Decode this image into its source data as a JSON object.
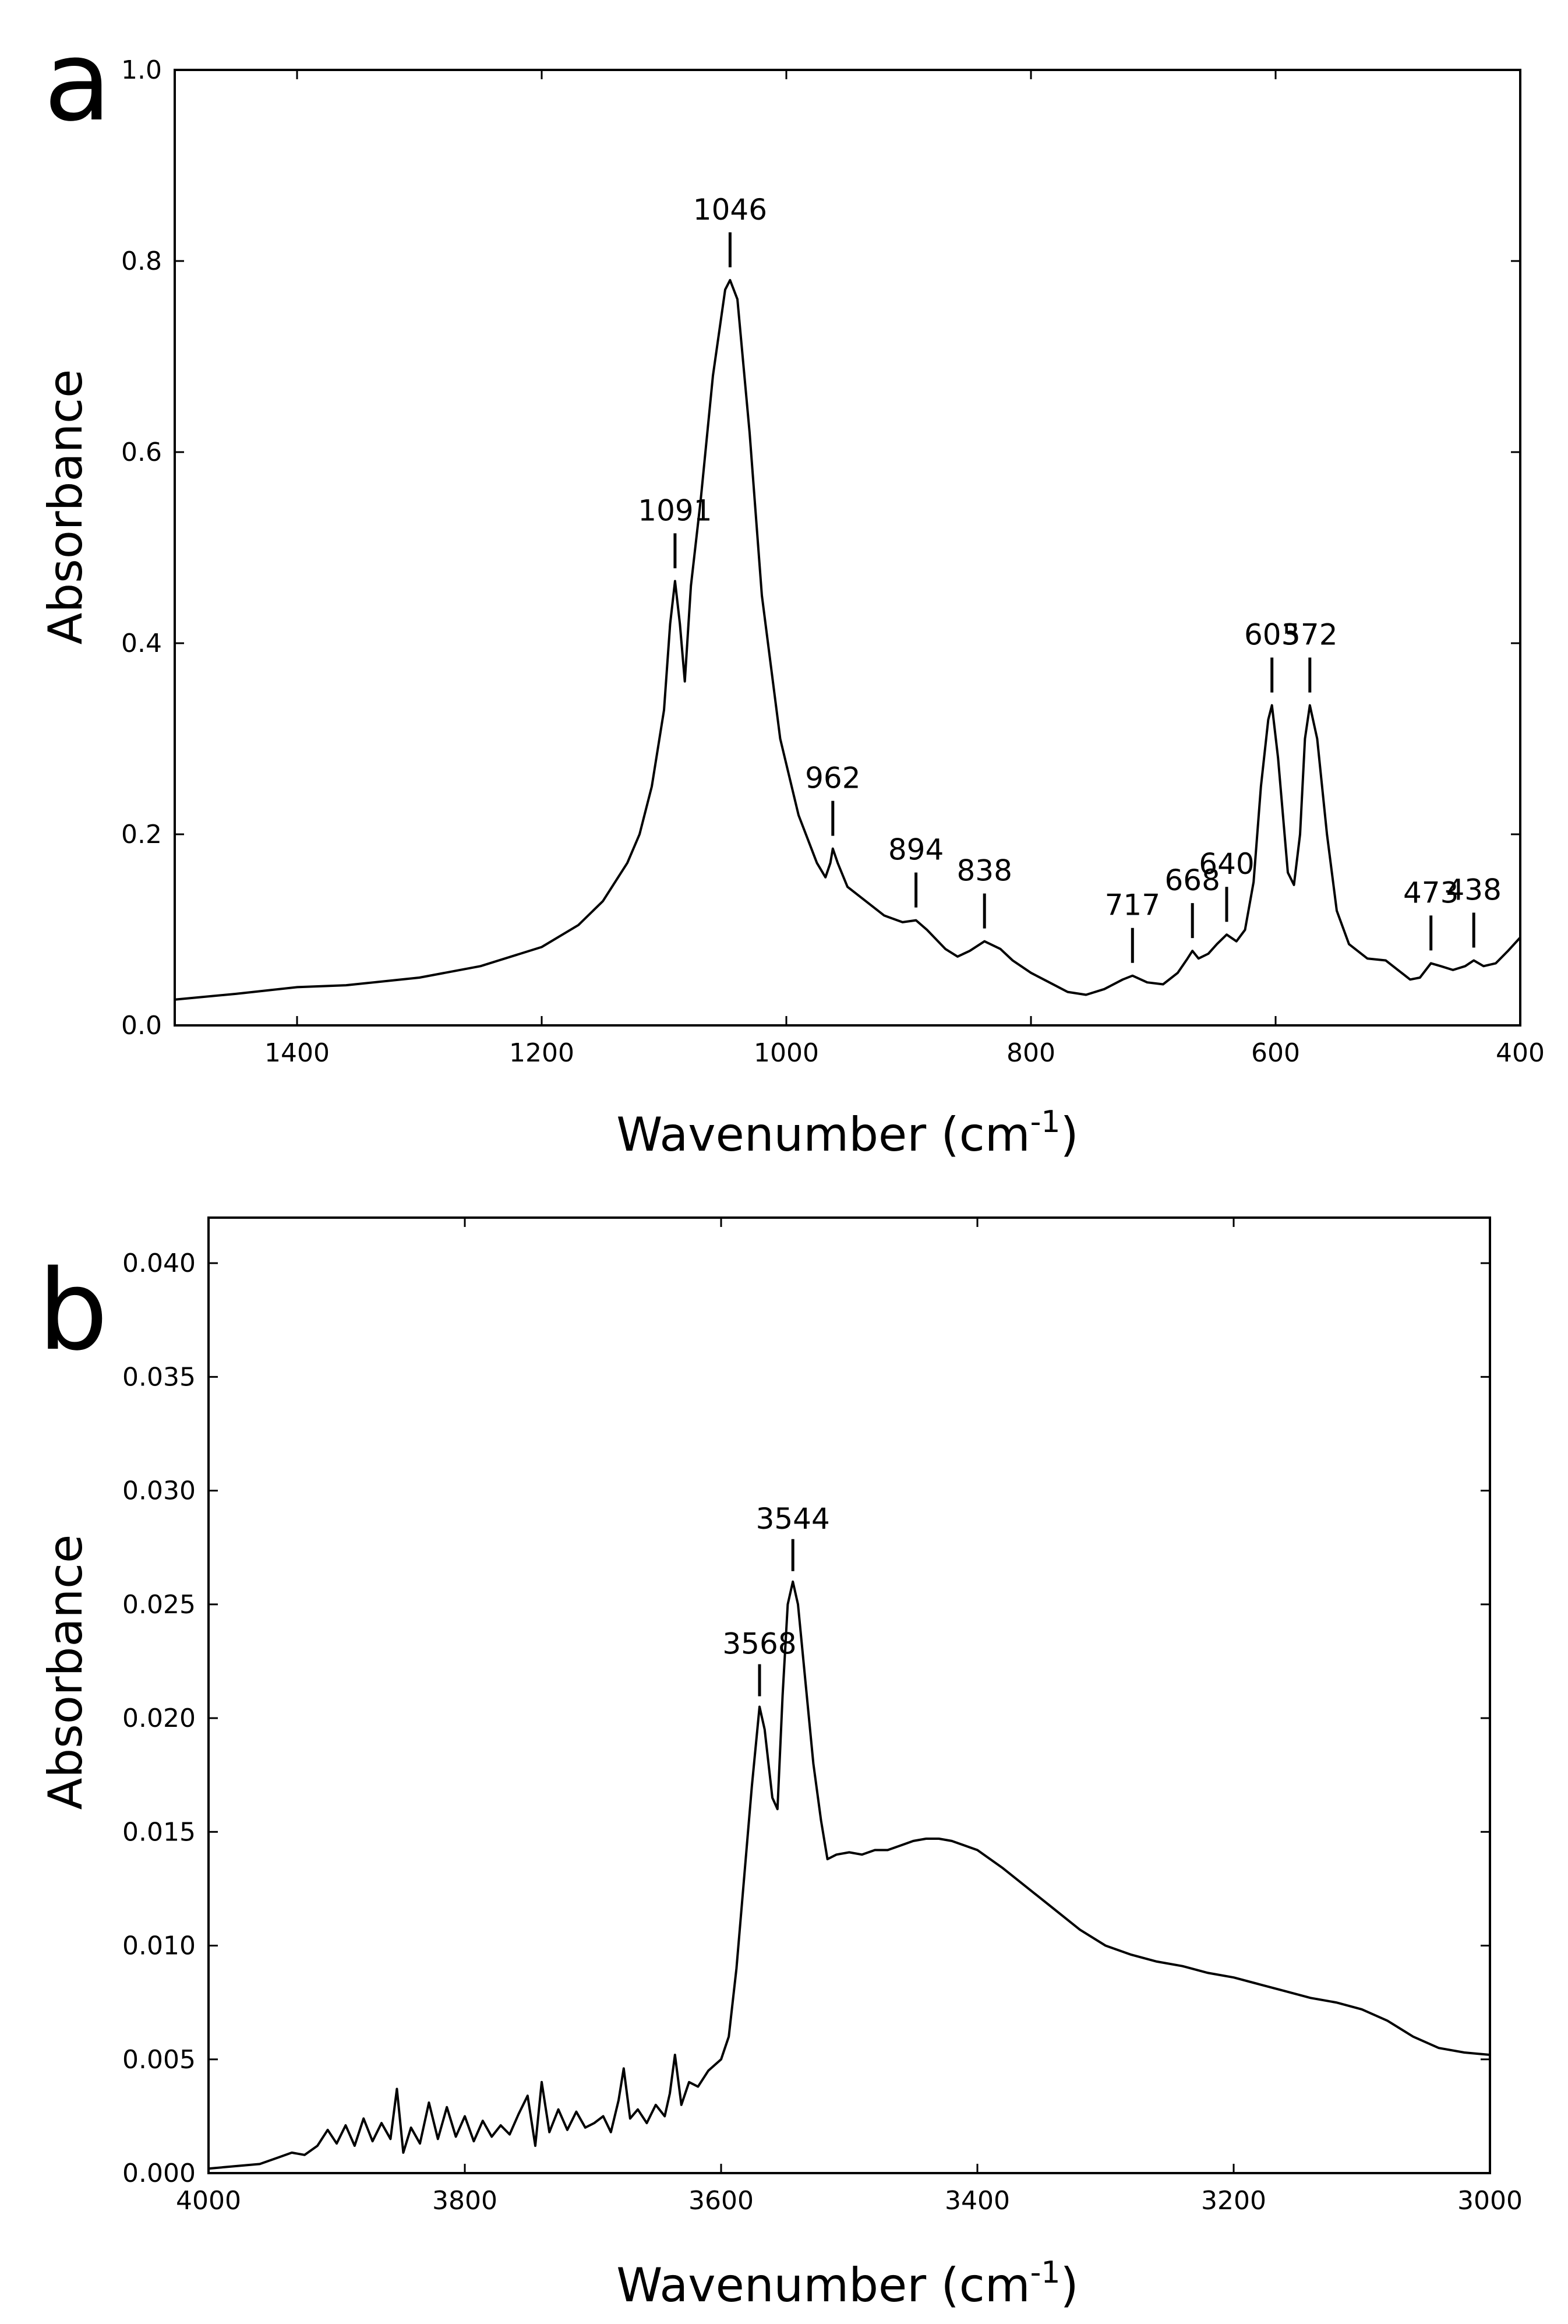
{
  "chart_data": [
    {
      "panel": "a",
      "type": "line",
      "xlabel": "Wavenumber (cm",
      "xlabel_sup": "-1",
      "xlabel_close": ")",
      "ylabel": "Absorbance",
      "xlim": [
        1500,
        400
      ],
      "ylim": [
        0.0,
        1.0
      ],
      "xticks": [
        1400,
        1200,
        1000,
        800,
        600,
        400
      ],
      "yticks": [
        {
          "v": 0.0,
          "label": "0.0"
        },
        {
          "v": 0.2,
          "label": "0.2"
        },
        {
          "v": 0.4,
          "label": "0.4"
        },
        {
          "v": 0.6,
          "label": "0.6"
        },
        {
          "v": 0.8,
          "label": "0.8"
        },
        {
          "v": 1.0,
          "label": "1.0"
        }
      ],
      "series": [
        {
          "name": "spectrum",
          "points": [
            [
              1500,
              0.027
            ],
            [
              1450,
              0.033
            ],
            [
              1400,
              0.04
            ],
            [
              1380,
              0.041
            ],
            [
              1360,
              0.042
            ],
            [
              1300,
              0.05
            ],
            [
              1250,
              0.062
            ],
            [
              1200,
              0.082
            ],
            [
              1170,
              0.105
            ],
            [
              1150,
              0.13
            ],
            [
              1130,
              0.17
            ],
            [
              1120,
              0.2
            ],
            [
              1110,
              0.25
            ],
            [
              1100,
              0.33
            ],
            [
              1095,
              0.42
            ],
            [
              1091,
              0.465
            ],
            [
              1087,
              0.42
            ],
            [
              1083,
              0.36
            ],
            [
              1078,
              0.46
            ],
            [
              1070,
              0.55
            ],
            [
              1060,
              0.68
            ],
            [
              1050,
              0.77
            ],
            [
              1046,
              0.78
            ],
            [
              1040,
              0.76
            ],
            [
              1030,
              0.62
            ],
            [
              1020,
              0.45
            ],
            [
              1005,
              0.3
            ],
            [
              990,
              0.22
            ],
            [
              975,
              0.17
            ],
            [
              968,
              0.155
            ],
            [
              964,
              0.17
            ],
            [
              962,
              0.185
            ],
            [
              958,
              0.17
            ],
            [
              950,
              0.145
            ],
            [
              935,
              0.13
            ],
            [
              920,
              0.115
            ],
            [
              905,
              0.108
            ],
            [
              894,
              0.11
            ],
            [
              885,
              0.1
            ],
            [
              870,
              0.08
            ],
            [
              860,
              0.072
            ],
            [
              850,
              0.078
            ],
            [
              838,
              0.088
            ],
            [
              825,
              0.08
            ],
            [
              815,
              0.068
            ],
            [
              800,
              0.055
            ],
            [
              785,
              0.045
            ],
            [
              770,
              0.035
            ],
            [
              755,
              0.032
            ],
            [
              740,
              0.038
            ],
            [
              725,
              0.048
            ],
            [
              717,
              0.052
            ],
            [
              705,
              0.045
            ],
            [
              692,
              0.043
            ],
            [
              680,
              0.055
            ],
            [
              672,
              0.07
            ],
            [
              668,
              0.078
            ],
            [
              663,
              0.07
            ],
            [
              655,
              0.075
            ],
            [
              648,
              0.085
            ],
            [
              640,
              0.095
            ],
            [
              632,
              0.088
            ],
            [
              625,
              0.1
            ],
            [
              618,
              0.15
            ],
            [
              612,
              0.25
            ],
            [
              606,
              0.32
            ],
            [
              603,
              0.335
            ],
            [
              598,
              0.28
            ],
            [
              590,
              0.16
            ],
            [
              585,
              0.147
            ],
            [
              580,
              0.2
            ],
            [
              576,
              0.3
            ],
            [
              572,
              0.335
            ],
            [
              566,
              0.3
            ],
            [
              558,
              0.2
            ],
            [
              550,
              0.12
            ],
            [
              540,
              0.085
            ],
            [
              525,
              0.07
            ],
            [
              510,
              0.068
            ],
            [
              500,
              0.058
            ],
            [
              490,
              0.048
            ],
            [
              482,
              0.05
            ],
            [
              473,
              0.065
            ],
            [
              465,
              0.062
            ],
            [
              455,
              0.058
            ],
            [
              445,
              0.062
            ],
            [
              438,
              0.068
            ],
            [
              430,
              0.062
            ],
            [
              420,
              0.065
            ],
            [
              410,
              0.078
            ],
            [
              400,
              0.092
            ]
          ]
        }
      ],
      "annotations": [
        {
          "label": "1091",
          "x": 1091,
          "y": 0.465
        },
        {
          "label": "1046",
          "x": 1046,
          "y": 0.78
        },
        {
          "label": "962",
          "x": 962,
          "y": 0.185
        },
        {
          "label": "894",
          "x": 894,
          "y": 0.11
        },
        {
          "label": "838",
          "x": 838,
          "y": 0.088
        },
        {
          "label": "717",
          "x": 717,
          "y": 0.052
        },
        {
          "label": "668",
          "x": 668,
          "y": 0.078
        },
        {
          "label": "640",
          "x": 640,
          "y": 0.095
        },
        {
          "label": "603",
          "x": 603,
          "y": 0.335
        },
        {
          "label": "572",
          "x": 572,
          "y": 0.335
        },
        {
          "label": "473",
          "x": 473,
          "y": 0.065
        },
        {
          "label": "438",
          "x": 438,
          "y": 0.068
        }
      ]
    },
    {
      "panel": "b",
      "type": "line",
      "xlabel": "Wavenumber (cm",
      "xlabel_sup": "-1",
      "xlabel_close": ")",
      "ylabel": "Absorbance",
      "xlim": [
        4000,
        3000
      ],
      "ylim": [
        0.0,
        0.042
      ],
      "xticks": [
        4000,
        3800,
        3600,
        3400,
        3200,
        3000
      ],
      "yticks": [
        {
          "v": 0.0,
          "label": "0.000"
        },
        {
          "v": 0.005,
          "label": "0.005"
        },
        {
          "v": 0.01,
          "label": "0.010"
        },
        {
          "v": 0.015,
          "label": "0.015"
        },
        {
          "v": 0.02,
          "label": "0.020"
        },
        {
          "v": 0.025,
          "label": "0.025"
        },
        {
          "v": 0.03,
          "label": "0.030"
        },
        {
          "v": 0.035,
          "label": "0.035"
        },
        {
          "v": 0.04,
          "label": "0.040"
        }
      ],
      "series": [
        {
          "name": "spectrum",
          "points": [
            [
              4000,
              0.0002
            ],
            [
              3980,
              0.0003
            ],
            [
              3960,
              0.0004
            ],
            [
              3945,
              0.0007
            ],
            [
              3935,
              0.0009
            ],
            [
              3925,
              0.0008
            ],
            [
              3915,
              0.0012
            ],
            [
              3907,
              0.0019
            ],
            [
              3900,
              0.0013
            ],
            [
              3893,
              0.0021
            ],
            [
              3886,
              0.0012
            ],
            [
              3879,
              0.0024
            ],
            [
              3872,
              0.0014
            ],
            [
              3865,
              0.0022
            ],
            [
              3858,
              0.0015
            ],
            [
              3853,
              0.0037
            ],
            [
              3848,
              0.0009
            ],
            [
              3842,
              0.002
            ],
            [
              3835,
              0.0013
            ],
            [
              3828,
              0.0031
            ],
            [
              3821,
              0.0015
            ],
            [
              3814,
              0.0029
            ],
            [
              3807,
              0.0016
            ],
            [
              3800,
              0.0025
            ],
            [
              3793,
              0.0014
            ],
            [
              3786,
              0.0023
            ],
            [
              3779,
              0.0016
            ],
            [
              3772,
              0.0021
            ],
            [
              3765,
              0.0017
            ],
            [
              3758,
              0.0026
            ],
            [
              3751,
              0.0034
            ],
            [
              3745,
              0.0012
            ],
            [
              3740,
              0.004
            ],
            [
              3734,
              0.0018
            ],
            [
              3727,
              0.0028
            ],
            [
              3720,
              0.0019
            ],
            [
              3713,
              0.0027
            ],
            [
              3706,
              0.002
            ],
            [
              3699,
              0.0022
            ],
            [
              3692,
              0.0025
            ],
            [
              3686,
              0.0018
            ],
            [
              3680,
              0.0032
            ],
            [
              3676,
              0.0046
            ],
            [
              3671,
              0.0024
            ],
            [
              3665,
              0.0028
            ],
            [
              3658,
              0.0022
            ],
            [
              3651,
              0.003
            ],
            [
              3644,
              0.0025
            ],
            [
              3640,
              0.0035
            ],
            [
              3636,
              0.0052
            ],
            [
              3631,
              0.003
            ],
            [
              3625,
              0.004
            ],
            [
              3618,
              0.0038
            ],
            [
              3610,
              0.0045
            ],
            [
              3600,
              0.005
            ],
            [
              3594,
              0.006
            ],
            [
              3588,
              0.009
            ],
            [
              3582,
              0.013
            ],
            [
              3576,
              0.017
            ],
            [
              3570,
              0.0205
            ],
            [
              3566,
              0.0195
            ],
            [
              3560,
              0.0165
            ],
            [
              3556,
              0.016
            ],
            [
              3552,
              0.021
            ],
            [
              3548,
              0.025
            ],
            [
              3544,
              0.026
            ],
            [
              3540,
              0.025
            ],
            [
              3534,
              0.0215
            ],
            [
              3528,
              0.018
            ],
            [
              3522,
              0.0155
            ],
            [
              3517,
              0.0138
            ],
            [
              3510,
              0.014
            ],
            [
              3500,
              0.0141
            ],
            [
              3490,
              0.014
            ],
            [
              3480,
              0.0142
            ],
            [
              3470,
              0.0142
            ],
            [
              3460,
              0.0144
            ],
            [
              3450,
              0.0146
            ],
            [
              3440,
              0.0147
            ],
            [
              3430,
              0.0147
            ],
            [
              3420,
              0.0146
            ],
            [
              3400,
              0.0142
            ],
            [
              3380,
              0.0134
            ],
            [
              3360,
              0.0125
            ],
            [
              3340,
              0.0116
            ],
            [
              3320,
              0.0107
            ],
            [
              3300,
              0.01
            ],
            [
              3280,
              0.0096
            ],
            [
              3260,
              0.0093
            ],
            [
              3240,
              0.0091
            ],
            [
              3220,
              0.0088
            ],
            [
              3200,
              0.0086
            ],
            [
              3180,
              0.0083
            ],
            [
              3160,
              0.008
            ],
            [
              3140,
              0.0077
            ],
            [
              3120,
              0.0075
            ],
            [
              3100,
              0.0072
            ],
            [
              3080,
              0.0067
            ],
            [
              3060,
              0.006
            ],
            [
              3040,
              0.0055
            ],
            [
              3020,
              0.0053
            ],
            [
              3000,
              0.0052
            ]
          ]
        }
      ],
      "annotations": [
        {
          "label": "3568",
          "x": 3570,
          "y": 0.0205
        },
        {
          "label": "3544",
          "x": 3544,
          "y": 0.026
        }
      ]
    }
  ]
}
